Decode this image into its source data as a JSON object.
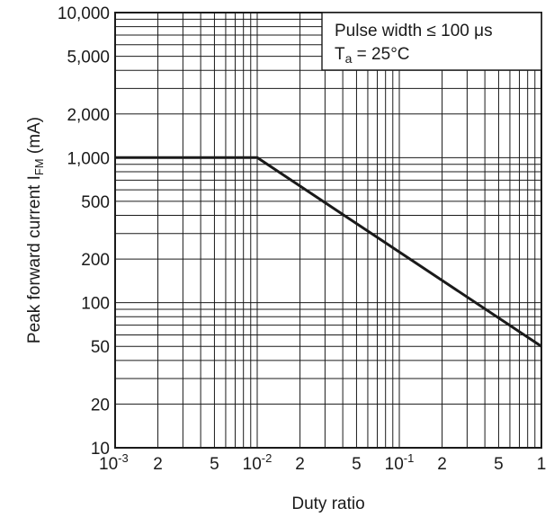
{
  "chart_data": {
    "type": "line",
    "x_scale": "log",
    "y_scale": "log",
    "xlim": [
      0.001,
      1
    ],
    "ylim": [
      10,
      10000
    ],
    "xlabel": "Duty ratio",
    "ylabel": "Peak forward current I",
    "ylabel_sub": "FM",
    "ylabel_unit": " (mA)",
    "grid": true,
    "series": [
      {
        "x": [
          0.001,
          0.01,
          1
        ],
        "y": [
          1000,
          1000,
          50
        ]
      }
    ],
    "x_ticks": [
      {
        "value": 0.001,
        "base": "10",
        "exp": "-3"
      },
      {
        "value": 0.002,
        "base": "2"
      },
      {
        "value": 0.005,
        "base": "5"
      },
      {
        "value": 0.01,
        "base": "10",
        "exp": "-2"
      },
      {
        "value": 0.02,
        "base": "2"
      },
      {
        "value": 0.05,
        "base": "5"
      },
      {
        "value": 0.1,
        "base": "10",
        "exp": "-1"
      },
      {
        "value": 0.2,
        "base": "2"
      },
      {
        "value": 0.5,
        "base": "5"
      },
      {
        "value": 1,
        "base": "1"
      }
    ],
    "y_ticks": [
      {
        "value": 10,
        "label": "10"
      },
      {
        "value": 20,
        "label": "20"
      },
      {
        "value": 50,
        "label": "50"
      },
      {
        "value": 100,
        "label": "100"
      },
      {
        "value": 200,
        "label": "200"
      },
      {
        "value": 500,
        "label": "500"
      },
      {
        "value": 1000,
        "label": "1,000"
      },
      {
        "value": 2000,
        "label": "2,000"
      },
      {
        "value": 5000,
        "label": "5,000"
      },
      {
        "value": 10000,
        "label": "10,000"
      }
    ],
    "annotation": {
      "line1": "Pulse width ≤ 100 μs",
      "line2_main": "T",
      "line2_sub": "a",
      "line2_rest": " = 25°C",
      "placement": "top-right"
    }
  }
}
